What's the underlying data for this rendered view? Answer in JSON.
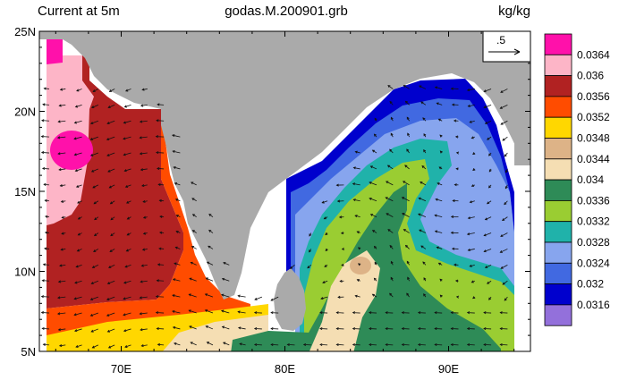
{
  "chart_data": {
    "type": "heatmap",
    "title_left": "Current at 5m",
    "title_center": "godas.M.200901.grb",
    "units": "kg/kg",
    "vector_reference_label": ".5",
    "x_range": [
      65,
      95
    ],
    "y_range": [
      5,
      25
    ],
    "x_ticks": [
      {
        "value": 70,
        "label": "70E"
      },
      {
        "value": 80,
        "label": "80E"
      },
      {
        "value": 90,
        "label": "90E"
      }
    ],
    "y_ticks": [
      {
        "value": 5,
        "label": "5N"
      },
      {
        "value": 10,
        "label": "10N"
      },
      {
        "value": 15,
        "label": "15N"
      },
      {
        "value": 20,
        "label": "20N"
      },
      {
        "value": 25,
        "label": "25N"
      }
    ],
    "legend": [
      {
        "color": "#ff11aa",
        "label": ""
      },
      {
        "color": "#fdb5c7",
        "label": "0.0364"
      },
      {
        "color": "#b12222",
        "label": "0.036"
      },
      {
        "color": "#ff4c00",
        "label": "0.0356"
      },
      {
        "color": "#ffd700",
        "label": "0.0352"
      },
      {
        "color": "#ddb387",
        "label": "0.0348"
      },
      {
        "color": "#f5deb3",
        "label": "0.0344"
      },
      {
        "color": "#2e8b57",
        "label": "0.034"
      },
      {
        "color": "#9acd32",
        "label": "0.0336"
      },
      {
        "color": "#20b2aa",
        "label": "0.0332"
      },
      {
        "color": "#87a5ee",
        "label": "0.0328"
      },
      {
        "color": "#4169e1",
        "label": "0.0324"
      },
      {
        "color": "#0000cd",
        "label": "0.032"
      },
      {
        "color": "#9370db",
        "label": "0.0316"
      }
    ],
    "colors": {
      "land": "#aaaaaa",
      "frame": "#000000",
      "arrow": "#111111"
    }
  }
}
